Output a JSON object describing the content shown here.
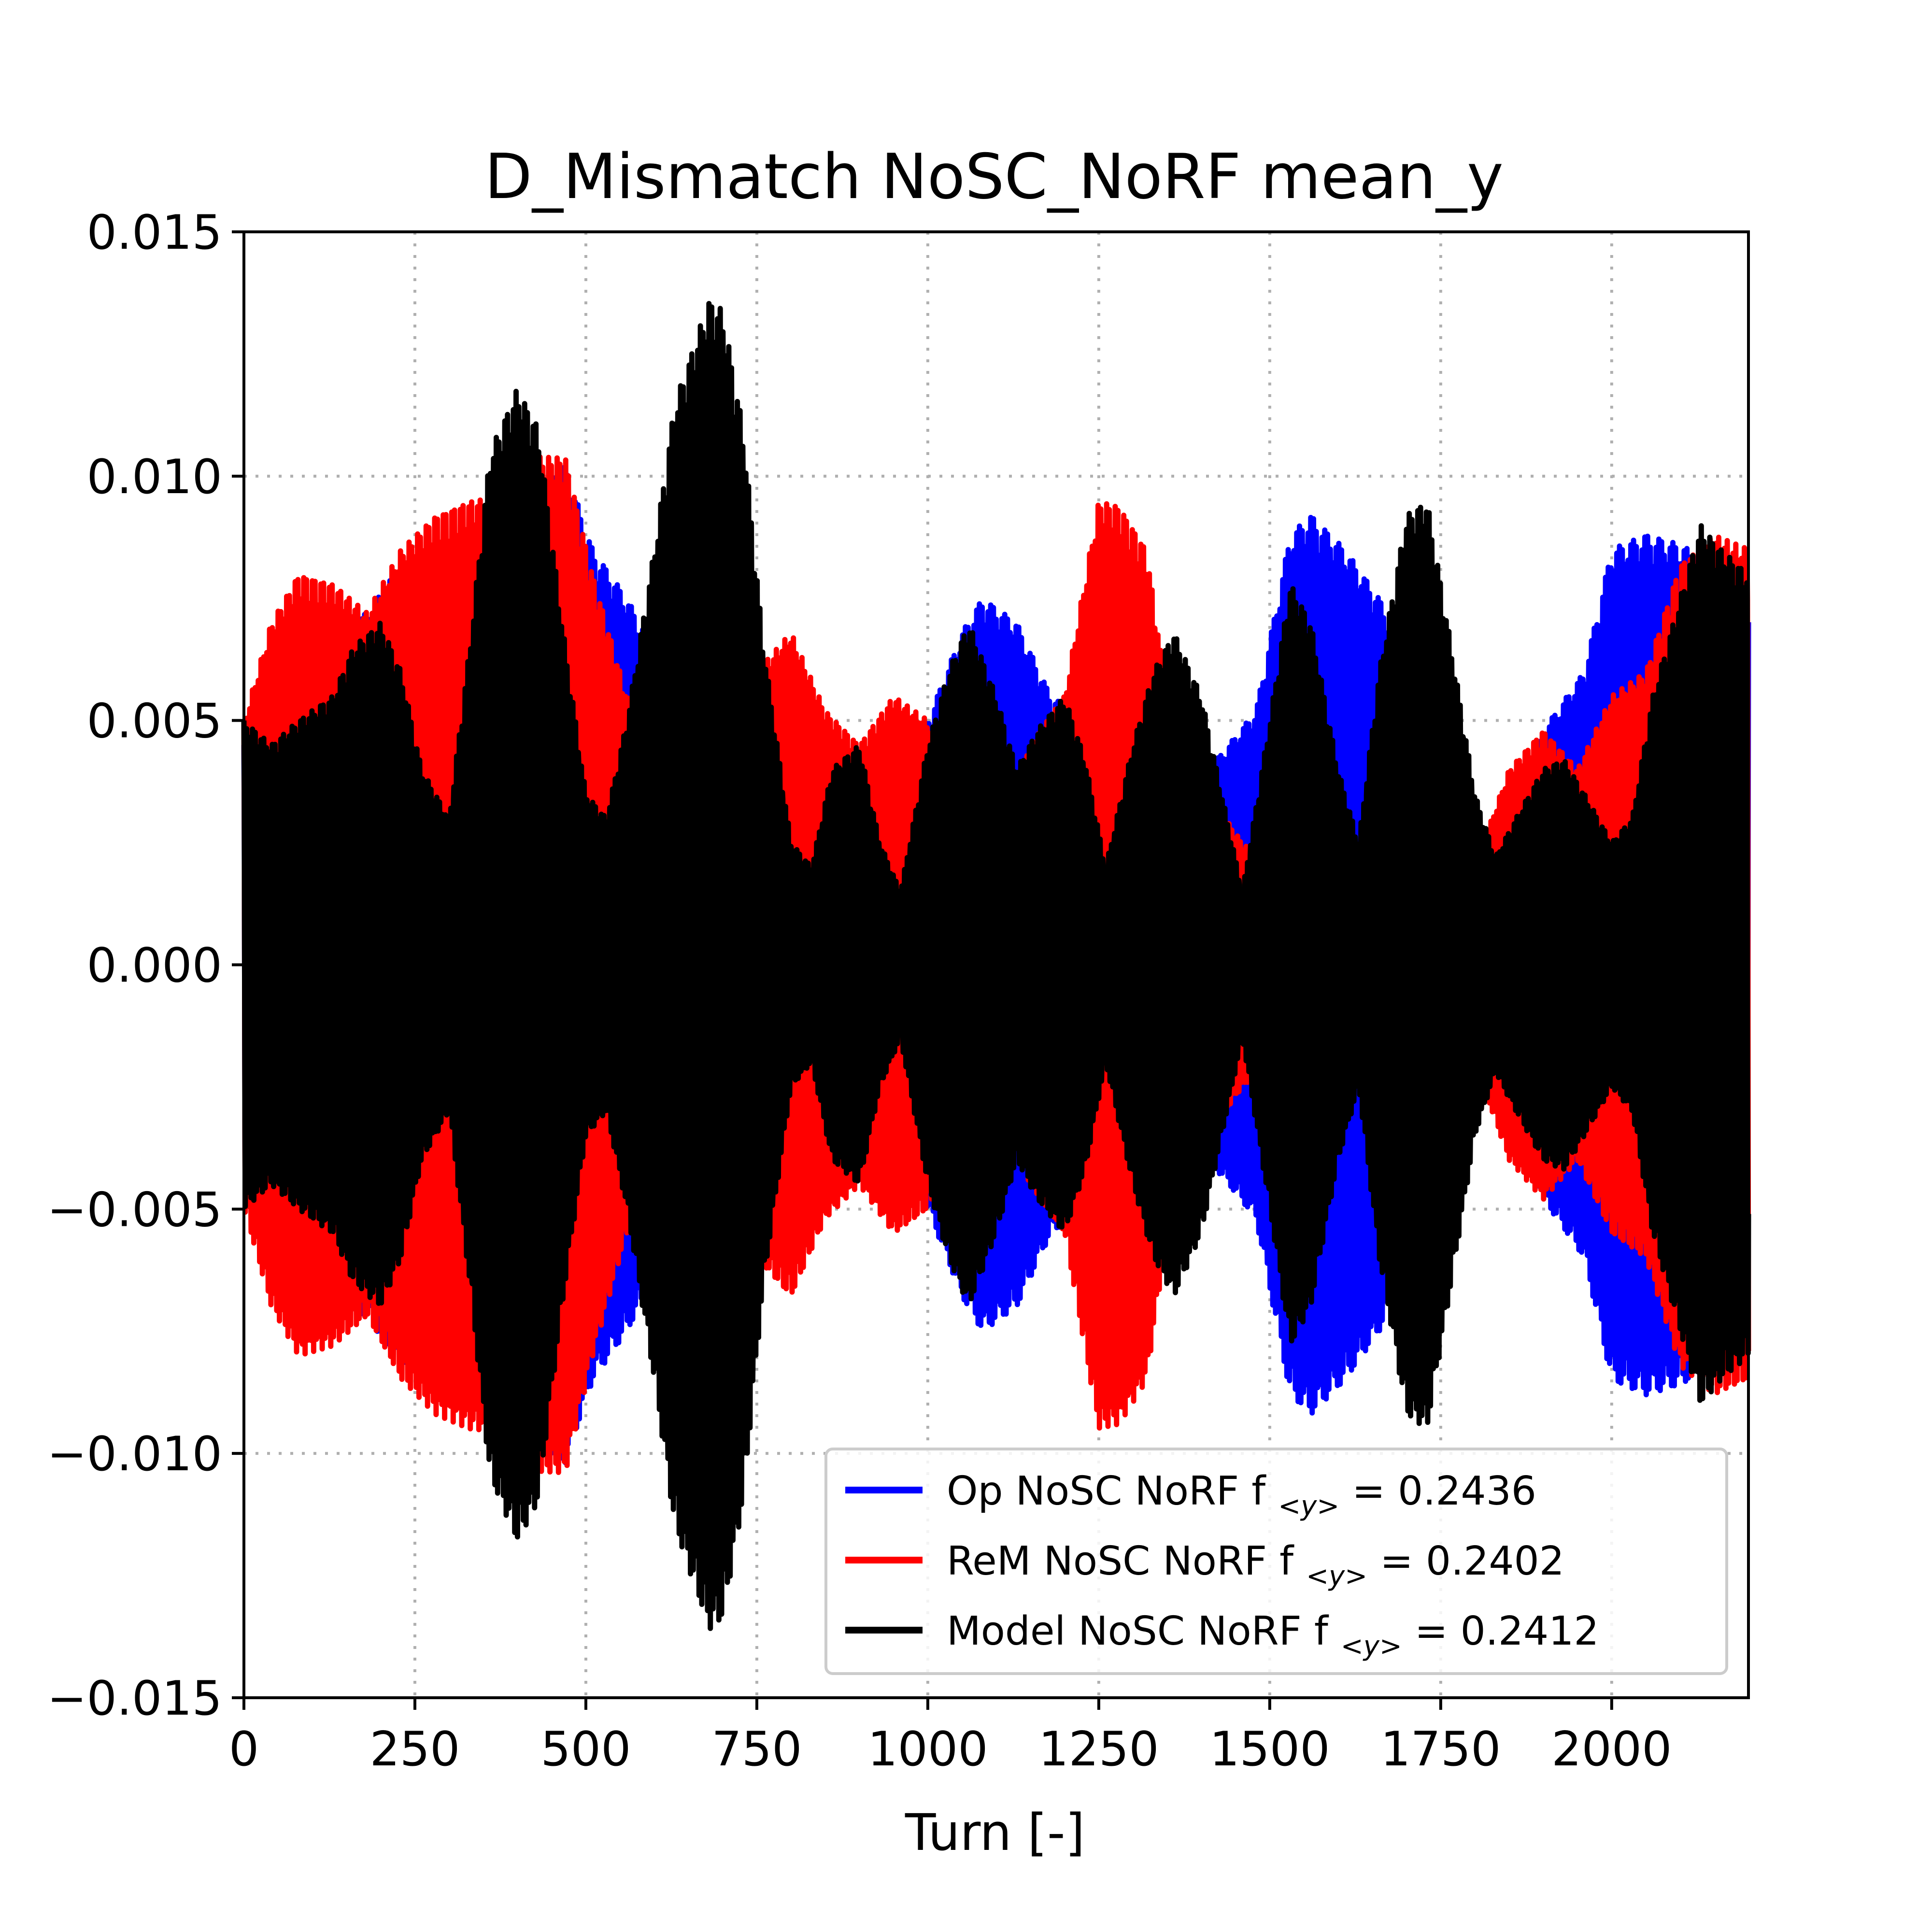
{
  "chart_data": {
    "type": "line",
    "title": "D_Mismatch NoSC_NoRF mean_y",
    "xlabel": "Turn [-]",
    "ylabel": "",
    "xlim": [
      0,
      2200
    ],
    "ylim": [
      -0.015,
      0.015
    ],
    "xticks": [
      0,
      250,
      500,
      750,
      1000,
      1250,
      1500,
      1750,
      2000
    ],
    "xtick_labels": [
      "0",
      "250",
      "500",
      "750",
      "1000",
      "1250",
      "1500",
      "1750",
      "2000"
    ],
    "yticks": [
      0.015,
      0.01,
      0.005,
      0.0,
      -0.005,
      -0.01,
      -0.015
    ],
    "ytick_labels": [
      "0.015",
      "0.010",
      "0.005",
      "0.000",
      "−0.005",
      "−0.010",
      "−0.015"
    ],
    "grid": true,
    "grid_style": "dotted",
    "legend_position": "lower right",
    "series": [
      {
        "name": "Op NoSC NoRF f",
        "subscript": "<y>",
        "value_text": "= 0.2436",
        "color": "#0000ff",
        "tune": 0.2436,
        "envelope": {
          "x": [
            0,
            50,
            90,
            130,
            180,
            230,
            280,
            330,
            380,
            430,
            470,
            510,
            560,
            610,
            660,
            700,
            730,
            770,
            820,
            860,
            900,
            950,
            1000,
            1050,
            1080,
            1130,
            1180,
            1230,
            1280,
            1320,
            1360,
            1410,
            1440,
            1480,
            1530,
            1560,
            1610,
            1660,
            1700,
            1730,
            1780,
            1810,
            1860,
            1910,
            1960,
            2000,
            2050,
            2100,
            2150,
            2200
          ],
          "y": [
            0.0045,
            0.0055,
            0.0065,
            0.0068,
            0.0072,
            0.0082,
            0.0078,
            0.009,
            0.0095,
            0.0098,
            0.0102,
            0.0085,
            0.0075,
            0.0062,
            0.005,
            0.0045,
            0.005,
            0.005,
            0.0048,
            0.0038,
            0.0035,
            0.004,
            0.005,
            0.0068,
            0.0075,
            0.007,
            0.0055,
            0.005,
            0.0052,
            0.0055,
            0.0045,
            0.004,
            0.0045,
            0.0052,
            0.0088,
            0.0092,
            0.0085,
            0.0075,
            0.0065,
            0.005,
            0.0035,
            0.0025,
            0.0035,
            0.005,
            0.006,
            0.0085,
            0.0088,
            0.0086,
            0.0082,
            0.008
          ]
        }
      },
      {
        "name": "ReM NoSC NoRF f",
        "subscript": "<y>",
        "value_text": "= 0.2402",
        "color": "#ff0000",
        "tune": 0.2402,
        "envelope": {
          "x": [
            0,
            40,
            80,
            130,
            180,
            230,
            280,
            330,
            380,
            430,
            470,
            510,
            560,
            610,
            660,
            700,
            750,
            800,
            850,
            900,
            950,
            1000,
            1050,
            1100,
            1150,
            1200,
            1250,
            1280,
            1320,
            1360,
            1410,
            1460,
            1500,
            1550,
            1600,
            1650,
            1700,
            1750,
            1800,
            1850,
            1900,
            1950,
            2000,
            2050,
            2100,
            2150,
            2200
          ],
          "y": [
            0.005,
            0.007,
            0.008,
            0.0078,
            0.0072,
            0.0085,
            0.0092,
            0.0095,
            0.0096,
            0.0104,
            0.0104,
            0.008,
            0.0055,
            0.0045,
            0.004,
            0.0045,
            0.006,
            0.0068,
            0.0052,
            0.0045,
            0.0055,
            0.005,
            0.0035,
            0.003,
            0.0045,
            0.0055,
            0.0095,
            0.0094,
            0.0085,
            0.0045,
            0.0035,
            0.0025,
            0.002,
            0.0018,
            0.0022,
            0.0025,
            0.002,
            0.0015,
            0.002,
            0.004,
            0.0048,
            0.004,
            0.0055,
            0.006,
            0.0082,
            0.0088,
            0.0085
          ]
        }
      },
      {
        "name": "Model NoSC NoRF f",
        "subscript": "<y>",
        "value_text": "= 0.2412",
        "color": "#000000",
        "tune": 0.2412,
        "envelope": {
          "x": [
            0,
            40,
            80,
            130,
            160,
            200,
            230,
            260,
            300,
            330,
            360,
            400,
            430,
            470,
            500,
            530,
            560,
            600,
            630,
            680,
            700,
            730,
            760,
            800,
            830,
            860,
            900,
            930,
            960,
            1000,
            1030,
            1060,
            1100,
            1130,
            1160,
            1200,
            1230,
            1260,
            1300,
            1330,
            1360,
            1400,
            1430,
            1460,
            1500,
            1530,
            1560,
            1600,
            1630,
            1660,
            1700,
            1730,
            1760,
            1800,
            1830,
            1860,
            1900,
            1930,
            1960,
            2000,
            2030,
            2060,
            2100,
            2130,
            2160,
            2200
          ],
          "y": [
            0.005,
            0.0045,
            0.005,
            0.0055,
            0.0065,
            0.007,
            0.006,
            0.004,
            0.003,
            0.0065,
            0.0105,
            0.0118,
            0.011,
            0.0065,
            0.0035,
            0.003,
            0.005,
            0.0085,
            0.0115,
            0.0136,
            0.0134,
            0.011,
            0.0065,
            0.0025,
            0.002,
            0.004,
            0.0045,
            0.0025,
            0.0015,
            0.0045,
            0.006,
            0.007,
            0.0055,
            0.004,
            0.0048,
            0.0055,
            0.0042,
            0.002,
            0.0045,
            0.006,
            0.0068,
            0.0055,
            0.0035,
            0.0015,
            0.005,
            0.0078,
            0.007,
            0.004,
            0.0025,
            0.006,
            0.0092,
            0.0095,
            0.007,
            0.0035,
            0.0022,
            0.003,
            0.004,
            0.0042,
            0.0035,
            0.0025,
            0.003,
            0.0055,
            0.0075,
            0.009,
            0.0085,
            0.008
          ]
        }
      }
    ]
  }
}
